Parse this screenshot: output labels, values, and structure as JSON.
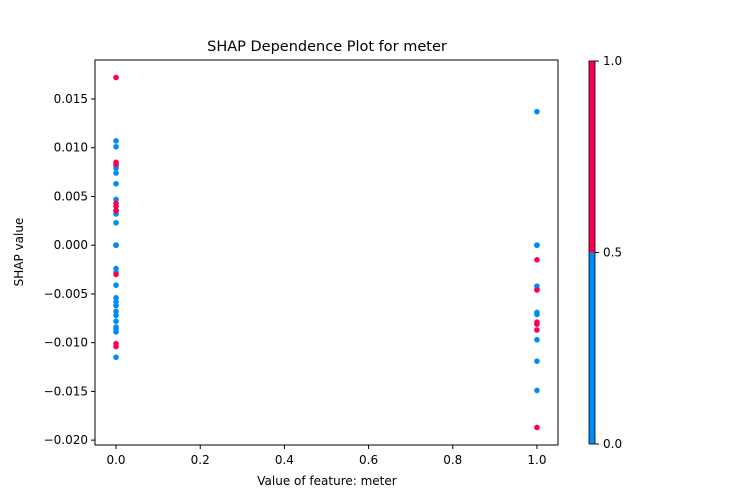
{
  "chart_data": {
    "type": "scatter",
    "title": "SHAP Dependence Plot for meter",
    "xlabel": "Value of feature: meter",
    "ylabel": "SHAP value",
    "xlim": [
      -0.05,
      1.05
    ],
    "ylim": [
      -0.0205,
      0.019
    ],
    "xticks": [
      0.0,
      0.2,
      0.4,
      0.6,
      0.8,
      1.0
    ],
    "xtick_labels": [
      "0.0",
      "0.2",
      "0.4",
      "0.6",
      "0.8",
      "1.0"
    ],
    "yticks": [
      -0.02,
      -0.015,
      -0.01,
      -0.005,
      0.0,
      0.005,
      0.01,
      0.015
    ],
    "ytick_labels": [
      "−0.020",
      "−0.015",
      "−0.010",
      "−0.005",
      "0.000",
      "0.005",
      "0.010",
      "0.015"
    ],
    "grid": false,
    "colorbar": {
      "ticks": [
        0.0,
        0.5,
        1.0
      ],
      "tick_labels": [
        "0.0",
        "0.5",
        "1.0"
      ],
      "low_color": "#008bfb",
      "high_color": "#ff0051"
    },
    "series": [
      {
        "color": "#008bfb",
        "points": [
          [
            0,
            0.0107
          ],
          [
            0,
            0.0101
          ],
          [
            0,
            0.0081
          ],
          [
            0,
            0.0079
          ],
          [
            0,
            0.0074
          ],
          [
            0,
            0.0063
          ],
          [
            0,
            0.0047
          ],
          [
            0,
            0.0036
          ],
          [
            0,
            0.0032
          ],
          [
            0,
            0.0023
          ],
          [
            0,
            0.0
          ],
          [
            0,
            0.0
          ],
          [
            0,
            0.0
          ],
          [
            0,
            0.0
          ],
          [
            0,
            -0.0024
          ],
          [
            0,
            -0.0028
          ],
          [
            0,
            -0.0041
          ],
          [
            0,
            -0.0054
          ],
          [
            0,
            -0.0058
          ],
          [
            0,
            -0.0062
          ],
          [
            0,
            -0.0068
          ],
          [
            0,
            -0.0072
          ],
          [
            0,
            -0.0078
          ],
          [
            0,
            -0.0084
          ],
          [
            0,
            -0.0086
          ],
          [
            0,
            -0.0089
          ],
          [
            0,
            -0.0115
          ],
          [
            1,
            0.0137
          ],
          [
            1,
            0.0
          ],
          [
            1,
            0.0
          ],
          [
            1,
            0.0
          ],
          [
            1,
            -0.0042
          ],
          [
            1,
            -0.0045
          ],
          [
            1,
            -0.0069
          ],
          [
            1,
            -0.0071
          ],
          [
            1,
            -0.0097
          ],
          [
            1,
            -0.0119
          ],
          [
            1,
            -0.0149
          ]
        ]
      },
      {
        "color": "#ff0051",
        "points": [
          [
            0,
            0.0172
          ],
          [
            0,
            0.0085
          ],
          [
            0,
            0.0083
          ],
          [
            0,
            0.0043
          ],
          [
            0,
            0.004
          ],
          [
            0,
            0.0035
          ],
          [
            0,
            -0.003
          ],
          [
            0,
            -0.0101
          ],
          [
            0,
            -0.0104
          ],
          [
            1,
            -0.0015
          ],
          [
            1,
            -0.0046
          ],
          [
            1,
            -0.0079
          ],
          [
            1,
            -0.0081
          ],
          [
            1,
            -0.0087
          ],
          [
            1,
            -0.0187
          ]
        ]
      }
    ]
  }
}
